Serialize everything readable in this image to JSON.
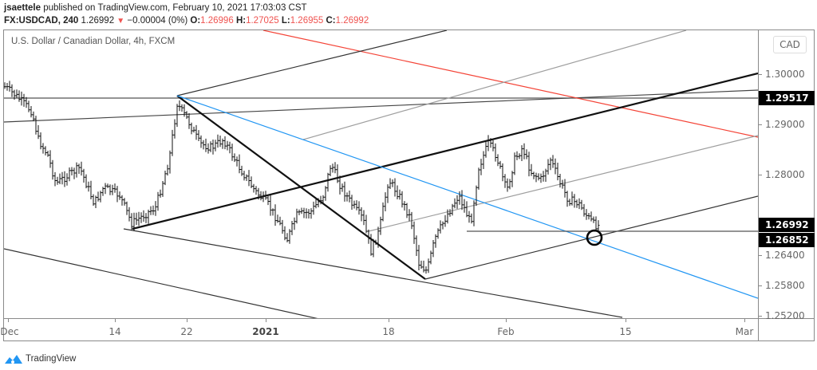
{
  "header": {
    "author": "jsaettele",
    "published_text": "published on TradingView.com, February 10, 2021 17:03:03 CST",
    "symbol": "FX:USDCAD, 240",
    "last": "1.26992",
    "change_arrow": "▼",
    "change": "−0.00004 (0%)",
    "o_label": "O:",
    "o": "1.26996",
    "h_label": "H:",
    "h": "1.27025",
    "l_label": "L:",
    "l": "1.26955",
    "c_label": "C:",
    "c": "1.26992"
  },
  "chart_title": "U.S. Dollar / Canadian Dollar, 4h, FXCM",
  "currency_button": "CAD",
  "price_axis": {
    "labels": [
      "1.30000",
      "1.29000",
      "1.28000",
      "1.26400",
      "1.25800",
      "1.25200"
    ],
    "badges": [
      {
        "value": "1.29517",
        "kind": "horizontal-line"
      },
      {
        "value": "1.26992",
        "kind": "last-price"
      },
      {
        "value": "1.26852",
        "kind": "horizontal-line"
      }
    ]
  },
  "time_axis": {
    "labels": [
      "Dec",
      "14",
      "22",
      "2021",
      "18",
      "Feb",
      "15",
      "Mar"
    ]
  },
  "brand": {
    "name": "TradingView",
    "color": "#2196f3"
  },
  "colors": {
    "bars": "#000000",
    "red_line": "#f44336",
    "blue_line": "#2196f3",
    "gray_line": "#9e9e9e",
    "badge_bg": "#000000",
    "down": "#ef5350"
  },
  "chart_data": {
    "type": "ohlc-bar",
    "title": "U.S. Dollar / Canadian Dollar, 4h, FXCM",
    "symbol": "FX:USDCAD",
    "interval": "4h",
    "xlabel": "",
    "ylabel": "CAD",
    "ylim": [
      1.25,
      1.309
    ],
    "x_ticks": [
      "Dec",
      "14",
      "22",
      "2021",
      "18",
      "Feb",
      "15",
      "Mar"
    ],
    "y_ticks": [
      1.3,
      1.29,
      1.28,
      1.264,
      1.258,
      1.252
    ],
    "last_close": 1.26992,
    "ohlc_last": {
      "open": 1.26996,
      "high": 1.27025,
      "low": 1.26955,
      "close": 1.26992
    },
    "series": [
      {
        "name": "USDCAD approx closes (key swing points)",
        "x": [
          "Dec 8",
          "Dec 10",
          "Dec 11",
          "Dec 14",
          "Dec 16",
          "Dec 17",
          "Dec 21",
          "Dec 22",
          "Dec 28",
          "Jan 4",
          "Jan 8",
          "Jan 13",
          "Jan 14",
          "Jan 19",
          "Jan 21",
          "Jan 25",
          "Jan 27",
          "Feb 1",
          "Feb 3",
          "Feb 5",
          "Feb 9",
          "Feb 10"
        ],
        "values": [
          1.2935,
          1.291,
          1.2775,
          1.278,
          1.2745,
          1.276,
          1.295,
          1.292,
          1.281,
          1.265,
          1.281,
          1.2695,
          1.263,
          1.278,
          1.2595,
          1.274,
          1.287,
          1.279,
          1.286,
          1.279,
          1.27,
          1.2699
        ]
      }
    ],
    "annotations": [
      {
        "type": "horizontal-line",
        "value": 1.29517,
        "label": "1.29517"
      },
      {
        "type": "horizontal-ray",
        "value": 1.26852,
        "label": "1.26852"
      },
      {
        "type": "trendline",
        "color": "blue",
        "desc": "descending from Dec 22 high through Feb support"
      },
      {
        "type": "trendline",
        "color": "red",
        "desc": "descending upper line"
      },
      {
        "type": "channel",
        "color": "black",
        "desc": "rising thick trendline from Dec 16 low"
      },
      {
        "type": "circle",
        "desc": "highlight at confluence near 1.2685 on Feb 10"
      }
    ]
  }
}
